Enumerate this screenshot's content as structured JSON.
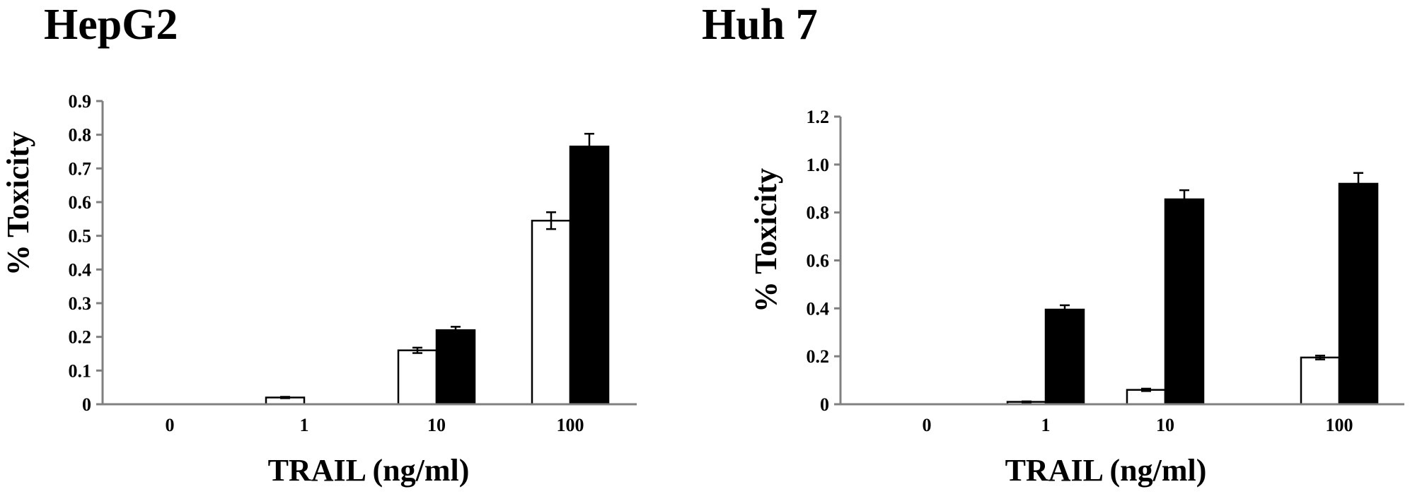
{
  "chart_data": [
    {
      "type": "bar",
      "title": "HepG2",
      "xlabel": "TRAIL (ng/ml)",
      "ylabel": "% Toxicity",
      "categories": [
        "0",
        "1",
        "10",
        "100"
      ],
      "ylim": [
        0,
        0.9
      ],
      "yticks": [
        0,
        0.1,
        0.2,
        0.3,
        0.4,
        0.5,
        0.6,
        0.7,
        0.8,
        0.9
      ],
      "ytick_labels": [
        "0",
        "0.1",
        "0.2",
        "0.3",
        "0.4",
        "0.5",
        "0.6",
        "0.7",
        "0.8",
        "0.9"
      ],
      "grid": false,
      "legend": "none",
      "series": [
        {
          "fill": "#ffffff",
          "values": [
            0,
            0.02,
            0.16,
            0.545
          ],
          "errors": [
            0,
            0.002,
            0.008,
            0.025
          ]
        },
        {
          "fill": "#000000",
          "values": [
            0,
            0,
            0.22,
            0.765
          ],
          "errors": [
            0,
            0,
            0.01,
            0.038
          ]
        }
      ]
    },
    {
      "type": "bar",
      "title": "Huh 7",
      "xlabel": "TRAIL (ng/ml)",
      "ylabel": "% Toxicity",
      "categories": [
        "0",
        "1",
        "10",
        "100"
      ],
      "ylim": [
        0,
        1.2
      ],
      "yticks": [
        0,
        0.2,
        0.4,
        0.6,
        0.8,
        1.0,
        1.2
      ],
      "ytick_labels": [
        "0",
        "0.2",
        "0.4",
        "0.6",
        "0.8",
        "1.0",
        "1.2"
      ],
      "grid": false,
      "legend": "none",
      "series": [
        {
          "fill": "#ffffff",
          "values": [
            0,
            0.01,
            0.06,
            0.195
          ],
          "errors": [
            0,
            0.002,
            0.005,
            0.008
          ]
        },
        {
          "fill": "#000000",
          "values": [
            0,
            0.395,
            0.855,
            0.92
          ],
          "errors": [
            0,
            0.018,
            0.038,
            0.045
          ]
        }
      ]
    }
  ]
}
